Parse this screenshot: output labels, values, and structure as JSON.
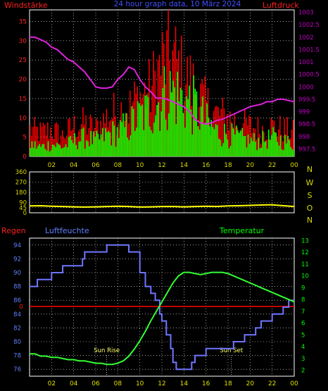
{
  "header": {
    "left_label": "Windstärke",
    "center_label": "24 hour graph data, 10 März 2024",
    "right_label": "Luftdruck"
  },
  "colors": {
    "background": "#000000",
    "grid": "#ffffff",
    "frame": "#ffffff",
    "axis_text_yellow": "#d8d800",
    "wind_left_axis": "#ff2020",
    "pressure_axis": "#c000c0",
    "gust_bars": "#ff0000",
    "avg_bars": "#00ff00",
    "pressure_line": "#dd22dd",
    "direction_line": "#ffff00",
    "rain_text": "#ff2020",
    "humidity_text": "#6080ff",
    "temperature_text": "#00ff00",
    "humidity_line": "#6f75ff",
    "temperature_line": "#33ff33",
    "rain_line": "#ff0000",
    "tick_label_yellow": "#e0e000"
  },
  "chart_data": [
    {
      "type": "bar",
      "name": "wind-pressure",
      "title": "24 hour graph data, 10 März 2024",
      "ylabel_left": "Windstärke",
      "ylabel_right": "Luftdruck",
      "x_ticks": [
        "02",
        "04",
        "06",
        "08",
        "10",
        "12",
        "14",
        "16",
        "18",
        "20",
        "22",
        "00"
      ],
      "y_left_ticks": [
        0,
        5,
        10,
        15,
        20,
        25,
        30,
        35
      ],
      "y_left_range": [
        0,
        38
      ],
      "y_right_ticks": [
        "997.5",
        "998",
        "998.5",
        "999",
        "999.5",
        "1000",
        "1000.5",
        "1001",
        "1001.5",
        "1002",
        "1002.5",
        "1003"
      ],
      "y_right_range": [
        997.2,
        1003.1
      ],
      "x_range": [
        0,
        24
      ],
      "grid": true,
      "series": [
        {
          "name": "Gust (red)",
          "kind": "bars",
          "x": [
            0,
            1,
            2,
            3,
            4,
            5,
            6,
            7,
            8,
            9,
            10,
            11,
            12,
            13,
            14,
            15,
            16,
            17,
            18,
            19,
            20,
            21,
            22,
            23,
            24
          ],
          "values": [
            9,
            8,
            9,
            7,
            10,
            11,
            9,
            13,
            15,
            16,
            20,
            22,
            31,
            33,
            26,
            23,
            17,
            14,
            13,
            11,
            10,
            9,
            10,
            9,
            8
          ]
        },
        {
          "name": "Average (green)",
          "kind": "bars",
          "x": [
            0,
            1,
            2,
            3,
            4,
            5,
            6,
            7,
            8,
            9,
            10,
            11,
            12,
            13,
            14,
            15,
            16,
            17,
            18,
            19,
            20,
            21,
            22,
            23,
            24
          ],
          "values": [
            4,
            3,
            4,
            3,
            5,
            6,
            5,
            7,
            8,
            10,
            13,
            15,
            19,
            21,
            18,
            16,
            11,
            8,
            7,
            6,
            5,
            5,
            6,
            5,
            4
          ]
        },
        {
          "name": "Pressure (magenta)",
          "kind": "line",
          "axis": "right",
          "x": [
            0,
            0.5,
            1,
            1.5,
            2,
            2.5,
            3,
            3.5,
            4,
            4.5,
            5,
            5.5,
            6,
            6.5,
            7,
            7.5,
            8,
            8.5,
            9,
            9.5,
            10,
            10.5,
            11,
            11.5,
            12,
            12.5,
            13,
            13.5,
            14,
            14.5,
            15,
            15.5,
            16,
            16.5,
            17,
            17.5,
            18,
            18.5,
            19,
            19.5,
            20,
            20.5,
            21,
            21.5,
            22,
            22.5,
            23,
            23.5,
            24
          ],
          "values": [
            1002.0,
            1002.0,
            1001.9,
            1001.8,
            1001.6,
            1001.5,
            1001.3,
            1001.1,
            1001.0,
            1000.8,
            1000.6,
            1000.3,
            1000.0,
            999.95,
            999.95,
            1000.0,
            1000.3,
            1000.5,
            1000.8,
            1000.7,
            1000.3,
            1000.0,
            999.8,
            999.55,
            999.55,
            999.5,
            999.4,
            999.3,
            999.2,
            999.0,
            998.7,
            998.55,
            998.5,
            998.55,
            998.65,
            998.7,
            998.8,
            998.9,
            999.0,
            999.1,
            999.2,
            999.25,
            999.3,
            999.4,
            999.4,
            999.5,
            999.5,
            999.45,
            999.4
          ]
        }
      ]
    },
    {
      "type": "line",
      "name": "wind-direction",
      "x_ticks": [],
      "y_ticks": [
        0,
        45,
        90,
        180,
        270,
        360
      ],
      "y_range": [
        0,
        360
      ],
      "x_range": [
        0,
        24
      ],
      "grid": true,
      "right_labels": [
        "N",
        "W",
        "S",
        "O",
        "N"
      ],
      "series": [
        {
          "name": "Direction (yellow)",
          "x": [
            0,
            1,
            2,
            3,
            4,
            5,
            6,
            7,
            8,
            9,
            10,
            11,
            12,
            13,
            14,
            15,
            16,
            17,
            18,
            19,
            20,
            21,
            22,
            23,
            24
          ],
          "values": [
            60,
            62,
            58,
            55,
            52,
            50,
            52,
            55,
            58,
            55,
            50,
            52,
            55,
            55,
            52,
            55,
            58,
            55,
            60,
            62,
            65,
            68,
            70,
            62,
            55
          ]
        }
      ]
    },
    {
      "type": "line",
      "name": "humidity-temperature",
      "left_title": "Regen",
      "middle_title": "Luftfeuchte",
      "right_title": "Temperatur",
      "x_ticks": [
        "02",
        "04",
        "06",
        "08",
        "10",
        "12",
        "14",
        "16",
        "18",
        "20",
        "22",
        "00"
      ],
      "y_left_ticks": [
        76,
        78,
        80,
        82,
        84,
        86,
        88,
        90,
        92,
        94
      ],
      "y_left_range": [
        75,
        95
      ],
      "y_right_ticks": [
        2,
        3,
        4,
        5,
        6,
        7,
        8,
        9,
        10,
        11,
        12,
        13
      ],
      "y_right_range": [
        1.5,
        13.2
      ],
      "x_range": [
        0,
        24
      ],
      "rain_zero_label": "0",
      "grid": true,
      "annotations": [
        {
          "label": "Sun Rise",
          "x": 7.0
        },
        {
          "label": "Sun Set",
          "x": 18.3
        }
      ],
      "series": [
        {
          "name": "Humidity (blue)",
          "axis": "left",
          "x": [
            0,
            0.7,
            1,
            2,
            2.7,
            3,
            4,
            4.8,
            5,
            6,
            6.5,
            7,
            7.5,
            8,
            9,
            10,
            10.5,
            11,
            11.4,
            11.8,
            12,
            12.4,
            12.8,
            13,
            13.3,
            13.6,
            14,
            14.7,
            15,
            15.5,
            16,
            17,
            18,
            18.5,
            19,
            19.5,
            20,
            20.5,
            21,
            21.5,
            22,
            22.5,
            23,
            23.5,
            24
          ],
          "values": [
            88,
            89,
            89,
            90,
            90,
            91,
            91,
            92,
            93,
            93,
            93,
            94,
            94,
            94,
            93,
            90,
            88,
            87,
            86,
            84,
            83,
            81,
            79,
            77,
            76,
            76,
            76,
            77,
            78,
            78,
            79,
            79,
            79,
            80,
            80,
            81,
            81,
            82,
            83,
            83,
            84,
            84,
            85,
            86,
            86
          ]
        },
        {
          "name": "Temperature (green)",
          "axis": "right",
          "x": [
            0,
            0.5,
            1,
            1.5,
            2,
            2.5,
            3,
            3.5,
            4,
            4.5,
            5,
            5.5,
            6,
            6.5,
            7,
            7.5,
            8,
            8.5,
            9,
            9.5,
            10,
            10.5,
            11,
            11.5,
            12,
            12.5,
            13,
            13.5,
            14,
            14.5,
            15,
            15.5,
            16,
            16.5,
            17,
            17.5,
            18,
            18.5,
            19,
            19.5,
            20,
            20.5,
            21,
            21.5,
            22,
            22.5,
            23,
            23.5,
            24
          ],
          "values": [
            3.4,
            3.4,
            3.2,
            3.2,
            3.1,
            3.1,
            3.0,
            2.9,
            2.9,
            2.8,
            2.8,
            2.7,
            2.6,
            2.6,
            2.5,
            2.5,
            2.6,
            2.8,
            3.2,
            3.8,
            4.5,
            5.3,
            6.2,
            7.0,
            7.8,
            8.6,
            9.4,
            10.0,
            10.3,
            10.3,
            10.2,
            10.1,
            10.2,
            10.3,
            10.3,
            10.3,
            10.2,
            10.0,
            9.8,
            9.6,
            9.4,
            9.2,
            9.0,
            8.8,
            8.6,
            8.4,
            8.2,
            8.0,
            7.8
          ]
        },
        {
          "name": "Rain (red)",
          "axis": "rain",
          "x": [
            0,
            24
          ],
          "values": [
            0,
            0
          ]
        }
      ]
    }
  ]
}
